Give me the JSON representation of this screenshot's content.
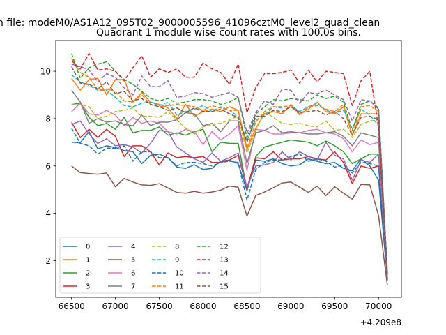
{
  "figure": {
    "suptitle": "n file: modeM0/AS1A12_095T02_9000005596_41096cztM0_level2_quad_clean",
    "title": "Quadrant 1 module wise count rates with 100.0s bins.",
    "offset_text": "+4.209e8"
  },
  "chart_data": {
    "type": "line",
    "title": "Quadrant 1 module wise count rates with 100.0s bins.",
    "xlabel": "",
    "ylabel": "",
    "x_offset": 420900000,
    "xlim": [
      66320,
      70260
    ],
    "ylim": [
      0.45,
      11.3
    ],
    "xticks": [
      66500,
      67000,
      67500,
      68000,
      68500,
      69000,
      69500,
      70000
    ],
    "yticks": [
      2,
      4,
      6,
      8,
      10
    ],
    "x": [
      66500,
      66600,
      66700,
      66800,
      66900,
      67000,
      67100,
      67200,
      67300,
      67400,
      67500,
      67600,
      67700,
      67800,
      67900,
      68000,
      68100,
      68200,
      68300,
      68400,
      68500,
      68600,
      68700,
      68800,
      68900,
      69000,
      69100,
      69200,
      69300,
      69400,
      69500,
      69600,
      69700,
      69800,
      69900,
      70000,
      70100
    ],
    "legend": {
      "location": "lower left",
      "ncol": 4
    },
    "series": [
      {
        "name": "0",
        "color": "#1f77b4",
        "dash": "solid",
        "values": [
          7.0,
          6.98,
          7.45,
          6.72,
          6.85,
          6.78,
          6.65,
          6.6,
          6.1,
          6.45,
          6.5,
          6.35,
          5.95,
          5.9,
          6.05,
          5.85,
          5.9,
          6.2,
          6.25,
          6.1,
          4.95,
          6.25,
          6.2,
          6.3,
          6.1,
          6.0,
          6.05,
          6.3,
          6.2,
          6.1,
          6.15,
          5.9,
          5.8,
          6.3,
          6.0,
          5.4,
          1.2
        ]
      },
      {
        "name": "1",
        "color": "#ff7f0e",
        "dash": "solid",
        "values": [
          9.7,
          9.2,
          9.65,
          9.7,
          9.0,
          9.65,
          9.65,
          8.7,
          9.1,
          8.7,
          8.6,
          8.45,
          8.0,
          8.6,
          8.1,
          8.3,
          8.4,
          8.3,
          8.5,
          8.35,
          6.7,
          7.6,
          8.2,
          8.3,
          8.2,
          8.6,
          8.2,
          8.4,
          8.7,
          8.3,
          8.2,
          8.5,
          7.3,
          8.2,
          8.2,
          8.2,
          1.3
        ]
      },
      {
        "name": "2",
        "color": "#2ca02c",
        "dash": "solid",
        "values": [
          8.6,
          8.65,
          8.05,
          7.7,
          7.8,
          7.55,
          8.05,
          7.4,
          7.5,
          7.5,
          7.65,
          7.3,
          7.4,
          7.3,
          7.45,
          7.55,
          6.6,
          7.0,
          6.95,
          6.95,
          5.0,
          6.4,
          6.8,
          6.9,
          7.0,
          7.1,
          7.05,
          7.0,
          6.85,
          7.05,
          6.85,
          6.6,
          6.1,
          6.3,
          6.5,
          6.5,
          1.25
        ]
      },
      {
        "name": "3",
        "color": "#d62728",
        "dash": "solid",
        "values": [
          7.85,
          7.2,
          7.55,
          7.2,
          7.55,
          7.25,
          6.4,
          6.85,
          6.85,
          6.6,
          6.05,
          6.55,
          6.35,
          6.4,
          6.35,
          6.4,
          6.15,
          6.15,
          6.25,
          6.45,
          5.05,
          6.35,
          6.3,
          6.6,
          6.25,
          6.3,
          6.3,
          6.4,
          6.3,
          6.25,
          6.6,
          6.15,
          5.25,
          6.0,
          5.9,
          6.0,
          1.2
        ]
      },
      {
        "name": "4",
        "color": "#9467bd",
        "dash": "solid",
        "values": [
          7.75,
          7.9,
          7.35,
          6.95,
          7.15,
          6.85,
          6.9,
          6.8,
          6.55,
          6.95,
          7.5,
          7.45,
          6.8,
          6.55,
          6.3,
          6.15,
          6.55,
          6.2,
          6.35,
          6.55,
          5.1,
          6.0,
          6.05,
          6.15,
          6.6,
          6.25,
          6.6,
          6.4,
          6.25,
          7.0,
          6.45,
          6.3,
          5.4,
          6.25,
          6.15,
          6.5,
          1.15
        ]
      },
      {
        "name": "5",
        "color": "#8c564b",
        "dash": "solid",
        "values": [
          6.0,
          5.72,
          5.68,
          5.65,
          5.7,
          5.12,
          5.47,
          5.32,
          5.2,
          5.18,
          5.25,
          5.07,
          4.88,
          4.85,
          4.93,
          4.85,
          4.9,
          4.98,
          5.15,
          5.1,
          3.88,
          4.75,
          4.9,
          5.08,
          5.28,
          5.32,
          5.1,
          4.88,
          5.15,
          4.75,
          5.12,
          4.85,
          4.6,
          5.22,
          5.2,
          3.9,
          0.95
        ]
      },
      {
        "name": "6",
        "color": "#e377c2",
        "dash": "solid",
        "values": [
          8.3,
          8.65,
          8.2,
          8.15,
          8.35,
          8.15,
          7.7,
          8.05,
          7.8,
          7.9,
          7.8,
          7.45,
          7.35,
          7.55,
          7.45,
          6.9,
          7.45,
          7.1,
          7.35,
          7.7,
          5.8,
          7.55,
          7.5,
          7.35,
          7.35,
          7.4,
          7.4,
          7.5,
          7.55,
          7.4,
          7.35,
          7.15,
          6.6,
          7.1,
          6.9,
          7.0,
          1.2
        ]
      },
      {
        "name": "7",
        "color": "#7f7f7f",
        "dash": "solid",
        "values": [
          9.2,
          8.7,
          7.8,
          8.0,
          7.85,
          7.9,
          7.75,
          7.7,
          8.15,
          7.7,
          7.85,
          7.85,
          7.95,
          8.25,
          8.2,
          7.7,
          7.8,
          7.45,
          7.9,
          7.9,
          6.1,
          7.4,
          7.5,
          7.7,
          7.4,
          7.45,
          7.4,
          7.35,
          7.35,
          7.4,
          7.45,
          7.25,
          6.85,
          7.4,
          7.3,
          7.2,
          1.25
        ]
      },
      {
        "name": "8",
        "color": "#bcbd22",
        "dash": "dashed",
        "values": [
          8.6,
          8.6,
          8.5,
          8.0,
          8.1,
          8.3,
          8.35,
          8.45,
          8.1,
          8.1,
          8.05,
          8.3,
          7.95,
          7.6,
          7.35,
          7.65,
          7.75,
          7.8,
          7.95,
          8.1,
          6.55,
          7.5,
          8.3,
          8.05,
          7.8,
          7.75,
          7.8,
          7.7,
          7.65,
          7.9,
          7.5,
          7.55,
          7.2,
          7.75,
          7.9,
          7.95,
          1.4
        ]
      },
      {
        "name": "9",
        "color": "#17becf",
        "dash": "dashed",
        "values": [
          9.85,
          9.55,
          9.4,
          9.2,
          9.2,
          8.9,
          8.55,
          8.5,
          8.65,
          8.7,
          8.55,
          8.7,
          8.15,
          8.3,
          8.4,
          8.55,
          8.3,
          8.5,
          8.35,
          8.1,
          7.05,
          7.95,
          8.1,
          8.5,
          8.45,
          8.55,
          8.3,
          8.5,
          8.65,
          8.35,
          8.25,
          8.35,
          7.55,
          8.4,
          8.15,
          7.7,
          1.4
        ]
      },
      {
        "name": "10",
        "color": "#1f77b4",
        "dash": "dashed",
        "values": [
          7.6,
          6.95,
          6.85,
          6.5,
          6.75,
          6.75,
          6.85,
          6.2,
          6.6,
          6.6,
          6.35,
          6.35,
          6.0,
          6.15,
          6.15,
          6.1,
          6.0,
          6.15,
          6.2,
          6.15,
          4.55,
          5.85,
          6.15,
          6.25,
          6.25,
          6.4,
          6.5,
          6.2,
          6.3,
          6.2,
          5.95,
          6.05,
          5.7,
          6.15,
          6.1,
          6.0,
          1.2
        ]
      },
      {
        "name": "11",
        "color": "#ff7f0e",
        "dash": "dashed",
        "values": [
          10.55,
          9.95,
          9.75,
          9.2,
          9.25,
          9.15,
          8.75,
          8.7,
          9.0,
          8.6,
          8.5,
          8.55,
          8.6,
          8.55,
          8.5,
          8.35,
          8.55,
          8.45,
          8.35,
          8.35,
          6.75,
          7.85,
          8.3,
          8.5,
          8.5,
          8.55,
          8.15,
          8.5,
          8.55,
          8.4,
          8.3,
          8.6,
          7.3,
          8.5,
          8.55,
          8.3,
          1.35
        ]
      },
      {
        "name": "12",
        "color": "#2ca02c",
        "dash": "dashed",
        "values": [
          10.75,
          9.7,
          10.15,
          10.3,
          10.4,
          10.0,
          9.65,
          9.45,
          9.15,
          8.85,
          8.75,
          8.85,
          8.65,
          8.7,
          8.8,
          8.8,
          8.75,
          8.6,
          8.7,
          8.9,
          7.2,
          8.2,
          8.5,
          8.8,
          8.75,
          8.85,
          8.8,
          8.75,
          9.0,
          8.85,
          8.95,
          8.7,
          7.5,
          8.6,
          8.75,
          8.45,
          1.5
        ]
      },
      {
        "name": "13",
        "color": "#d62728",
        "dash": "dashed",
        "values": [
          10.45,
          10.1,
          10.75,
          10.05,
          10.1,
          10.0,
          9.6,
          10.15,
          10.65,
          9.75,
          10.1,
          9.95,
          10.1,
          9.75,
          9.75,
          10.35,
          10.1,
          9.95,
          9.45,
          10.3,
          8.25,
          9.3,
          9.9,
          9.9,
          9.95,
          10.05,
          9.5,
          10.05,
          9.55,
          10.0,
          9.95,
          9.9,
          8.55,
          9.6,
          10.0,
          7.6,
          1.4
        ]
      },
      {
        "name": "14",
        "color": "#9467bd",
        "dash": "dashed",
        "values": [
          10.3,
          10.2,
          10.05,
          9.55,
          9.9,
          9.75,
          9.3,
          9.0,
          9.8,
          9.35,
          9.35,
          9.6,
          8.9,
          8.95,
          9.1,
          9.05,
          8.9,
          9.0,
          9.1,
          8.9,
          7.4,
          8.25,
          8.75,
          8.6,
          9.25,
          9.2,
          8.65,
          9.1,
          9.05,
          9.2,
          9.0,
          8.8,
          7.9,
          8.8,
          8.75,
          8.4,
          1.45
        ]
      },
      {
        "name": "15",
        "color": "#8c564b",
        "dash": "dashed",
        "values": [
          10.2,
          9.5,
          9.45,
          9.25,
          9.55,
          9.05,
          9.15,
          8.75,
          8.85,
          8.6,
          8.5,
          8.35,
          8.45,
          8.25,
          8.45,
          8.3,
          8.3,
          8.4,
          8.2,
          8.05,
          7.0,
          8.1,
          8.1,
          8.35,
          8.3,
          8.5,
          8.25,
          8.3,
          8.35,
          8.15,
          8.3,
          8.0,
          7.3,
          8.05,
          8.1,
          7.95,
          1.45
        ]
      }
    ]
  }
}
